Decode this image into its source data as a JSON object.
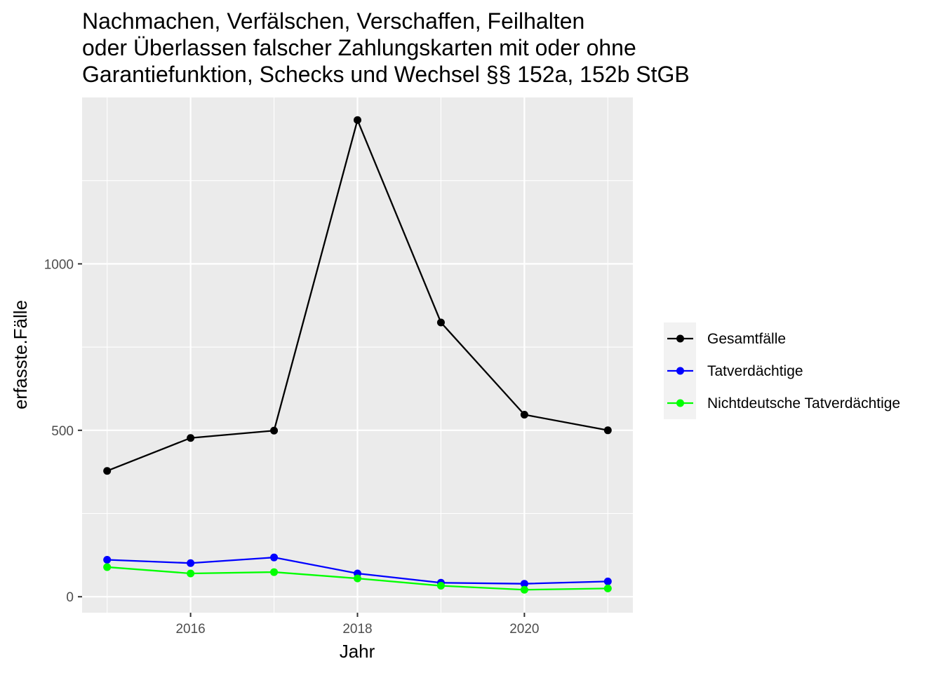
{
  "chart_data": {
    "type": "line",
    "title_lines": [
      "Nachmachen, Verfälschen, Verschaffen, Feilhalten",
      "oder Überlassen falscher Zahlungskarten mit oder ohne",
      "Garantiefunktion, Schecks und Wechsel §§ 152a, 152b StGB"
    ],
    "xlabel": "Jahr",
    "ylabel": "erfasste.Fälle",
    "x": [
      2015,
      2016,
      2017,
      2018,
      2019,
      2020,
      2021
    ],
    "xlim": [
      2014.7,
      2021.3
    ],
    "ylim": [
      -48,
      1500
    ],
    "x_ticks": [
      2016,
      2018,
      2020
    ],
    "x_tick_labels": [
      "2016",
      "2018",
      "2020"
    ],
    "y_ticks": [
      0,
      500,
      1000
    ],
    "y_tick_labels": [
      "0",
      "500",
      "1000"
    ],
    "grid": true,
    "legend_position": "right",
    "series": [
      {
        "name": "Gesamtfälle",
        "color": "#000000",
        "values": [
          378,
          477,
          499,
          1432,
          824,
          547,
          500
        ]
      },
      {
        "name": "Tatverdächtige",
        "color": "#0000ff",
        "values": [
          111,
          101,
          118,
          70,
          42,
          39,
          46
        ]
      },
      {
        "name": "Nichtdeutsche Tatverdächtige",
        "color": "#00ff00",
        "values": [
          89,
          70,
          74,
          55,
          33,
          21,
          25
        ]
      }
    ],
    "colors": {
      "panel_background": "#ebebeb",
      "grid": "#ffffff",
      "legend_background": "#f2f2f2"
    }
  }
}
